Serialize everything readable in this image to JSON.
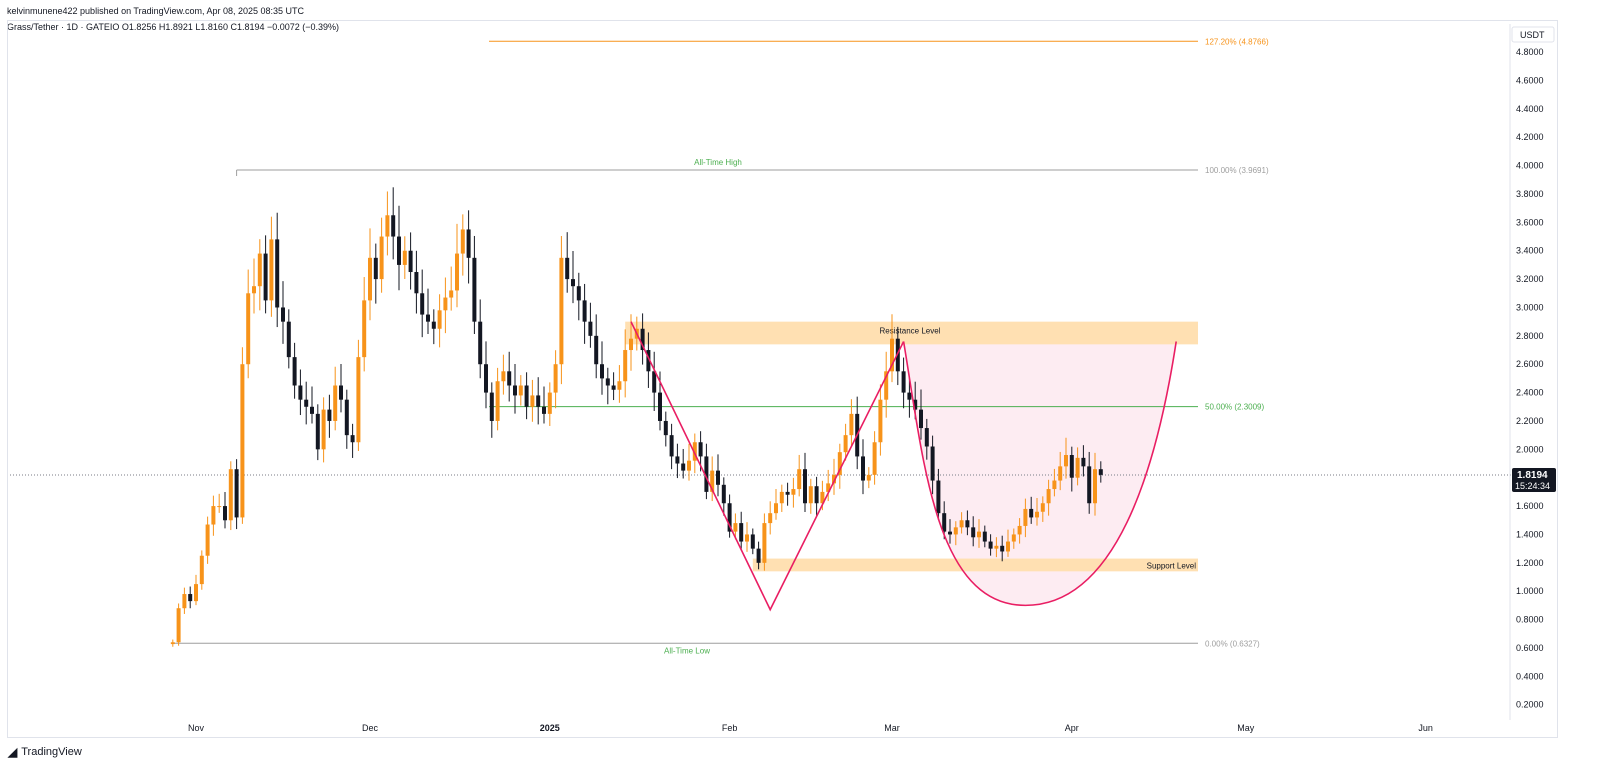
{
  "header": {
    "publisher": "kelvinmunene422 published on TradingView.com, Apr 08, 2025 08:35 UTC",
    "symbol_line": "Grass/Tether · 1D · GATEIO  O1.8256  H1.8921  L1.8160  C1.8194  −0.0072 (−0.39%)"
  },
  "brand": {
    "name": "TradingView",
    "icon": "tradingview-logo-icon"
  },
  "colors": {
    "up": "#f7931a",
    "down": "#131722",
    "zone": "#ffe0b2",
    "cup_fill": "#fce4ec",
    "cup_line": "#e91e63",
    "fib_green": "#4caf50",
    "fib_orange": "#f7931a",
    "fib_gray": "#9e9e9e"
  },
  "chart_data": {
    "type": "candlestick",
    "symbol": "Grass/Tether · 1D · GATEIO",
    "currency_label": "USDT",
    "y_ticks": [
      4.8,
      4.6,
      4.4,
      4.2,
      4.0,
      3.8,
      3.6,
      3.4,
      3.2,
      3.0,
      2.8,
      2.6,
      2.4,
      2.2,
      2.0,
      1.8,
      1.6,
      1.4,
      1.2,
      1.0,
      0.8,
      0.6,
      0.4,
      0.2
    ],
    "x_ticks": [
      "Nov",
      "Dec",
      "2025",
      "Feb",
      "Mar",
      "Apr",
      "May",
      "Jun"
    ],
    "x_tick_dates": [
      "2024-11-01",
      "2024-12-01",
      "2025-01-01",
      "2025-02-01",
      "2025-03-01",
      "2025-04-01",
      "2025-05-01",
      "2025-06-01"
    ],
    "ylim": [
      0.1,
      4.98
    ],
    "last_price": "1.8194",
    "countdown": "15:24:34",
    "ohlc_last": {
      "open": 1.8256,
      "high": 1.8921,
      "low": 1.816,
      "close": 1.8194,
      "change": -0.0072,
      "change_pct": -0.39
    },
    "candles_start": "2024-10-28",
    "closes": [
      0.64,
      0.88,
      0.98,
      0.93,
      1.05,
      1.25,
      1.47,
      1.6,
      1.6,
      1.5,
      1.86,
      1.52,
      2.6,
      3.1,
      3.15,
      3.38,
      3.05,
      3.48,
      3.0,
      2.9,
      2.65,
      2.45,
      2.35,
      2.3,
      2.25,
      2.0,
      2.28,
      2.2,
      2.45,
      2.35,
      2.1,
      2.05,
      2.65,
      3.05,
      3.35,
      3.2,
      3.5,
      3.65,
      3.5,
      3.3,
      3.4,
      3.25,
      3.1,
      2.95,
      2.9,
      2.85,
      2.98,
      3.07,
      3.12,
      3.38,
      3.55,
      3.35,
      2.9,
      2.6,
      2.4,
      2.2,
      2.48,
      2.55,
      2.45,
      2.38,
      2.45,
      2.3,
      2.38,
      2.3,
      2.25,
      2.4,
      2.6,
      3.35,
      3.2,
      3.15,
      3.05,
      2.9,
      2.8,
      2.6,
      2.5,
      2.45,
      2.42,
      2.48,
      2.7,
      2.78,
      2.85,
      2.7,
      2.55,
      2.4,
      2.2,
      2.1,
      1.95,
      1.9,
      1.85,
      1.92,
      2.05,
      1.95,
      1.7,
      1.85,
      1.75,
      1.62,
      1.42,
      1.48,
      1.35,
      1.4,
      1.3,
      1.2,
      1.48,
      1.55,
      1.62,
      1.7,
      1.68,
      1.72,
      1.86,
      1.62,
      1.74,
      1.62,
      1.7,
      1.76,
      1.82,
      1.98,
      2.1,
      2.25,
      1.95,
      1.78,
      1.82,
      2.05,
      2.35,
      2.55,
      2.78,
      2.55,
      2.4,
      2.35,
      2.28,
      2.15,
      2.02,
      1.78,
      1.55,
      1.42,
      1.4,
      1.45,
      1.5,
      1.45,
      1.38,
      1.42,
      1.35,
      1.3,
      1.32,
      1.28,
      1.35,
      1.4,
      1.46,
      1.58,
      1.52,
      1.56,
      1.62,
      1.72,
      1.78,
      1.88,
      1.96,
      1.8,
      1.94,
      1.88,
      1.62,
      1.86,
      1.82
    ],
    "annotations": {
      "resistance": {
        "label": "Resistance Level",
        "from": 2.74,
        "to": 2.9,
        "start": "2025-01-14"
      },
      "support": {
        "label": "Support Level",
        "from": 1.14,
        "to": 1.23,
        "start": "2025-02-05"
      },
      "ath": {
        "label": "All-Time High",
        "value": 3.9691,
        "date": "2024-11-08"
      },
      "atl": {
        "label": "All-Time Low",
        "value": 0.6327,
        "date": "2024-10-28"
      },
      "fib": [
        {
          "label": "127.20% (4.8766)",
          "value": 4.8766
        },
        {
          "label": "100.00% (3.9691)",
          "value": 3.9691
        },
        {
          "label": "50.00% (2.3009)",
          "value": 2.3009
        },
        {
          "label": "0.00% (0.6327)",
          "value": 0.6327
        }
      ],
      "v_pattern": [
        {
          "date": "2025-01-15",
          "value": 2.9
        },
        {
          "date": "2025-02-08",
          "value": 0.87
        },
        {
          "date": "2025-03-03",
          "value": 2.76
        }
      ],
      "cup": {
        "left_date": "2025-03-03",
        "left_value": 2.76,
        "bottom_date": "2025-03-24",
        "bottom_value": 0.9,
        "right_date": "2025-04-19",
        "right_value": 2.76
      }
    }
  }
}
